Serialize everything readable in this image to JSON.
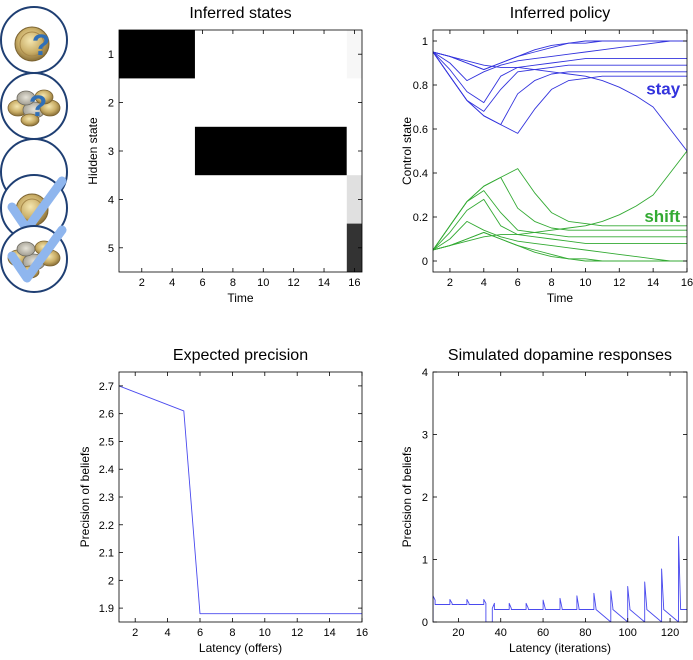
{
  "colors": {
    "policy_stay": "#3333dd",
    "policy_shift": "#33aa33",
    "precision_line": "#4a4aee",
    "dopamine_line": "#4a4aee",
    "icon_border": "#1f3f73",
    "check": "#8fb6ee",
    "question": "#2f6fb7"
  },
  "icons": [
    {
      "name": "single-coin-question-icon"
    },
    {
      "name": "coin-pile-question-icon"
    },
    {
      "name": "empty-icon"
    },
    {
      "name": "single-coin-check-icon"
    },
    {
      "name": "coin-pile-check-icon"
    }
  ],
  "chart_data": [
    {
      "id": "states",
      "type": "heatmap",
      "title": "Inferred states",
      "xlabel": "Time",
      "ylabel": "Hidden state",
      "xlim": [
        0.5,
        16.5
      ],
      "ylim": [
        0.5,
        5.5
      ],
      "xticks": [
        2,
        4,
        6,
        8,
        10,
        12,
        14,
        16
      ],
      "yticks": [
        1,
        2,
        3,
        4,
        5
      ],
      "blocks": [
        {
          "state": 1,
          "t_start": 1,
          "t_end": 5,
          "value": 1.0
        },
        {
          "state": 3,
          "t_start": 6,
          "t_end": 15,
          "value": 1.0
        }
      ],
      "last_column": {
        "time": 16,
        "values": [
          0.03,
          0.0,
          0.0,
          0.12,
          0.8
        ]
      }
    },
    {
      "id": "policy",
      "type": "line",
      "title": "Inferred policy",
      "xlabel": "Time",
      "ylabel": "Control state",
      "xlim": [
        1,
        16
      ],
      "ylim": [
        -0.05,
        1.05
      ],
      "xticks": [
        2,
        4,
        6,
        8,
        10,
        12,
        14,
        16
      ],
      "yticks": [
        0,
        0.2,
        0.4,
        0.6,
        0.8,
        1
      ],
      "annotations": [
        {
          "text": "stay",
          "x": 15.6,
          "y": 0.78,
          "series": "stay"
        },
        {
          "text": "shift",
          "x": 15.6,
          "y": 0.2,
          "series": "shift"
        }
      ],
      "series": [
        {
          "name": "stay",
          "x": [
            1,
            2,
            3,
            4,
            5,
            6,
            7,
            8,
            9,
            10,
            11,
            12,
            13,
            14,
            15,
            16
          ],
          "values": [
            0.95,
            0.93,
            0.9,
            0.87,
            0.9,
            0.93,
            0.96,
            0.98,
            0.99,
            1.0,
            1.0,
            1.0,
            1.0,
            1.0,
            1.0,
            1.0
          ]
        },
        {
          "name": "stay",
          "x": [
            1,
            2,
            3,
            4,
            5,
            6,
            7,
            8,
            9,
            10,
            11,
            12,
            13,
            14,
            15,
            16
          ],
          "values": [
            0.95,
            0.93,
            0.9,
            0.87,
            0.9,
            0.93,
            0.95,
            0.97,
            0.99,
            0.99,
            1.0,
            1.0,
            1.0,
            1.0,
            1.0,
            1.0
          ]
        },
        {
          "name": "stay",
          "x": [
            1,
            2,
            3,
            4,
            5,
            6,
            7,
            8,
            9,
            10,
            11,
            12,
            13,
            14,
            15,
            16
          ],
          "values": [
            0.95,
            0.9,
            0.82,
            0.86,
            0.89,
            0.91,
            0.92,
            0.93,
            0.94,
            0.95,
            0.96,
            0.97,
            0.98,
            0.99,
            1.0,
            1.0
          ]
        },
        {
          "name": "stay",
          "x": [
            1,
            2,
            3,
            4,
            5,
            6,
            7,
            8,
            9,
            10,
            11,
            12,
            13,
            14,
            15,
            16
          ],
          "values": [
            0.95,
            0.87,
            0.77,
            0.72,
            0.84,
            0.88,
            0.89,
            0.9,
            0.91,
            0.92,
            0.92,
            0.92,
            0.92,
            0.92,
            0.92,
            0.92
          ]
        },
        {
          "name": "stay",
          "x": [
            1,
            2,
            3,
            4,
            5,
            6,
            7,
            8,
            9,
            10,
            11,
            12,
            13,
            14,
            15,
            16
          ],
          "values": [
            0.95,
            0.84,
            0.73,
            0.68,
            0.78,
            0.86,
            0.87,
            0.88,
            0.89,
            0.89,
            0.89,
            0.89,
            0.89,
            0.89,
            0.89,
            0.89
          ]
        },
        {
          "name": "stay",
          "x": [
            1,
            2,
            3,
            4,
            5,
            6,
            7,
            8,
            9,
            10,
            11,
            12,
            13,
            14,
            15,
            16
          ],
          "values": [
            0.95,
            0.84,
            0.73,
            0.66,
            0.62,
            0.76,
            0.82,
            0.85,
            0.86,
            0.86,
            0.86,
            0.86,
            0.86,
            0.86,
            0.86,
            0.86
          ]
        },
        {
          "name": "stay",
          "x": [
            1,
            2,
            3,
            4,
            5,
            6,
            7,
            8,
            9,
            10,
            11,
            12,
            13,
            14,
            15,
            16
          ],
          "values": [
            0.95,
            0.84,
            0.73,
            0.66,
            0.62,
            0.58,
            0.69,
            0.78,
            0.82,
            0.83,
            0.84,
            0.84,
            0.84,
            0.84,
            0.84,
            0.84
          ]
        },
        {
          "name": "stay",
          "x": [
            1,
            2,
            3,
            4,
            5,
            6,
            7,
            8,
            9,
            10,
            11,
            12,
            13,
            14,
            15,
            16
          ],
          "values": [
            0.95,
            0.93,
            0.91,
            0.89,
            0.88,
            0.88,
            0.87,
            0.86,
            0.85,
            0.84,
            0.82,
            0.79,
            0.75,
            0.7,
            0.6,
            0.5
          ]
        },
        {
          "name": "shift",
          "x": [
            1,
            2,
            3,
            4,
            5,
            6,
            7,
            8,
            9,
            10,
            11,
            12,
            13,
            14,
            15,
            16
          ],
          "values": [
            0.05,
            0.07,
            0.1,
            0.13,
            0.1,
            0.07,
            0.04,
            0.02,
            0.01,
            0.0,
            0.0,
            0.0,
            0.0,
            0.0,
            0.0,
            0.0
          ]
        },
        {
          "name": "shift",
          "x": [
            1,
            2,
            3,
            4,
            5,
            6,
            7,
            8,
            9,
            10,
            11,
            12,
            13,
            14,
            15,
            16
          ],
          "values": [
            0.05,
            0.07,
            0.1,
            0.13,
            0.1,
            0.07,
            0.05,
            0.03,
            0.01,
            0.01,
            0.0,
            0.0,
            0.0,
            0.0,
            0.0,
            0.0
          ]
        },
        {
          "name": "shift",
          "x": [
            1,
            2,
            3,
            4,
            5,
            6,
            7,
            8,
            9,
            10,
            11,
            12,
            13,
            14,
            15,
            16
          ],
          "values": [
            0.05,
            0.1,
            0.18,
            0.14,
            0.11,
            0.09,
            0.08,
            0.07,
            0.06,
            0.05,
            0.04,
            0.03,
            0.02,
            0.01,
            0.0,
            0.0
          ]
        },
        {
          "name": "shift",
          "x": [
            1,
            2,
            3,
            4,
            5,
            6,
            7,
            8,
            9,
            10,
            11,
            12,
            13,
            14,
            15,
            16
          ],
          "values": [
            0.05,
            0.13,
            0.23,
            0.28,
            0.16,
            0.12,
            0.11,
            0.1,
            0.09,
            0.08,
            0.08,
            0.08,
            0.08,
            0.08,
            0.08,
            0.08
          ]
        },
        {
          "name": "shift",
          "x": [
            1,
            2,
            3,
            4,
            5,
            6,
            7,
            8,
            9,
            10,
            11,
            12,
            13,
            14,
            15,
            16
          ],
          "values": [
            0.05,
            0.16,
            0.27,
            0.32,
            0.22,
            0.14,
            0.13,
            0.12,
            0.11,
            0.11,
            0.11,
            0.11,
            0.11,
            0.11,
            0.11,
            0.11
          ]
        },
        {
          "name": "shift",
          "x": [
            1,
            2,
            3,
            4,
            5,
            6,
            7,
            8,
            9,
            10,
            11,
            12,
            13,
            14,
            15,
            16
          ],
          "values": [
            0.05,
            0.16,
            0.27,
            0.34,
            0.38,
            0.24,
            0.18,
            0.15,
            0.14,
            0.14,
            0.14,
            0.14,
            0.14,
            0.14,
            0.14,
            0.14
          ]
        },
        {
          "name": "shift",
          "x": [
            1,
            2,
            3,
            4,
            5,
            6,
            7,
            8,
            9,
            10,
            11,
            12,
            13,
            14,
            15,
            16
          ],
          "values": [
            0.05,
            0.16,
            0.27,
            0.34,
            0.38,
            0.42,
            0.31,
            0.22,
            0.18,
            0.17,
            0.16,
            0.16,
            0.16,
            0.16,
            0.16,
            0.16
          ]
        },
        {
          "name": "shift",
          "x": [
            1,
            2,
            3,
            4,
            5,
            6,
            7,
            8,
            9,
            10,
            11,
            12,
            13,
            14,
            15,
            16
          ],
          "values": [
            0.05,
            0.07,
            0.09,
            0.11,
            0.12,
            0.12,
            0.13,
            0.14,
            0.15,
            0.16,
            0.18,
            0.21,
            0.25,
            0.3,
            0.4,
            0.5
          ]
        }
      ]
    },
    {
      "id": "precision",
      "type": "line",
      "title": "Expected precision",
      "xlabel": "Latency (offers)",
      "ylabel": "Precision of beliefs",
      "xlim": [
        1,
        16
      ],
      "ylim": [
        1.85,
        2.75
      ],
      "xticks": [
        2,
        4,
        6,
        8,
        10,
        12,
        14,
        16
      ],
      "yticks": [
        1.9,
        2,
        2.1,
        2.2,
        2.3,
        2.4,
        2.5,
        2.6,
        2.7
      ],
      "ytick_labels": [
        "1.9",
        "2",
        "2.1",
        "2.2",
        "2.3",
        "2.4",
        "2.5",
        "2.6",
        "2.7"
      ],
      "series": [
        {
          "name": "precision",
          "x": [
            1,
            5,
            6,
            16
          ],
          "values": [
            2.7,
            2.61,
            1.88,
            1.88
          ]
        }
      ]
    },
    {
      "id": "dopamine",
      "type": "line",
      "title": "Simulated dopamine responses",
      "xlabel": "Latency (iterations)",
      "ylabel": "Precision of beliefs",
      "xlim": [
        8,
        128
      ],
      "ylim": [
        0,
        4
      ],
      "xticks": [
        20,
        40,
        60,
        80,
        100,
        120
      ],
      "yticks": [
        0,
        1,
        2,
        3,
        4
      ],
      "series": [
        {
          "name": "dopamine",
          "x": [
            8,
            8,
            9,
            9,
            16,
            16,
            17,
            17,
            24,
            24,
            25,
            25,
            32,
            32,
            33,
            33,
            34,
            34,
            36,
            36,
            37,
            37,
            44,
            44,
            45,
            45,
            52,
            52,
            53,
            53,
            60,
            60,
            61,
            61,
            68,
            68,
            69,
            69,
            76,
            76,
            77,
            77,
            84,
            84,
            85,
            85,
            92,
            92,
            93,
            93,
            100,
            100,
            101,
            101,
            108,
            108,
            109,
            109,
            116,
            116,
            117,
            117,
            124,
            124,
            125,
            125,
            128
          ],
          "values": [
            0.0,
            0.42,
            0.35,
            0.28,
            0.28,
            0.36,
            0.3,
            0.28,
            0.28,
            0.36,
            0.3,
            0.28,
            0.28,
            0.36,
            0.3,
            0.0,
            0.0,
            0.0,
            0.0,
            0.22,
            0.3,
            0.2,
            0.2,
            0.3,
            0.22,
            0.2,
            0.2,
            0.3,
            0.22,
            0.2,
            0.2,
            0.35,
            0.22,
            0.2,
            0.2,
            0.38,
            0.22,
            0.2,
            0.2,
            0.42,
            0.22,
            0.2,
            0.2,
            0.46,
            0.22,
            0.2,
            0.0,
            0.5,
            0.22,
            0.2,
            0.0,
            0.57,
            0.22,
            0.2,
            0.0,
            0.64,
            0.22,
            0.2,
            0.0,
            0.85,
            0.22,
            0.2,
            0.0,
            1.37,
            0.22,
            0.2,
            0.2
          ]
        }
      ]
    }
  ]
}
